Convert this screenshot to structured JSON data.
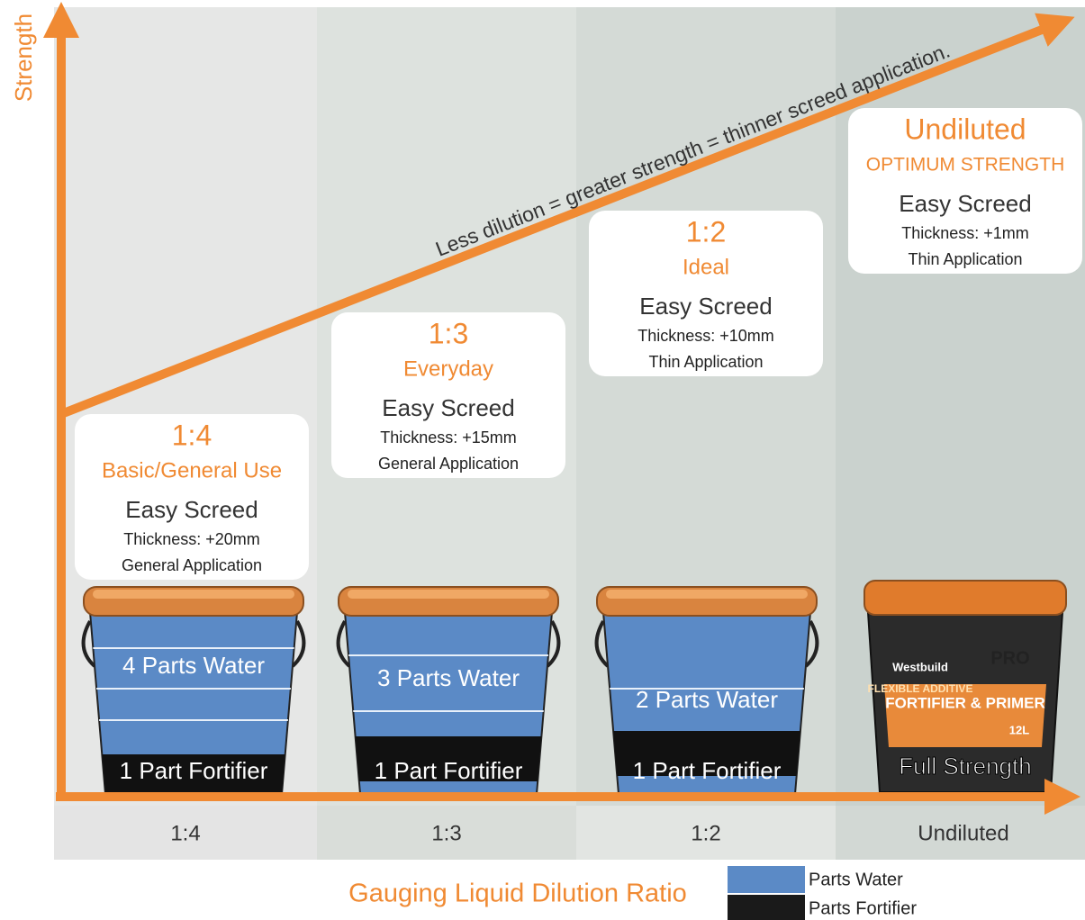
{
  "y_axis_label": "Strength",
  "trend_label": "Less dilution = greater strength = thinner screed application.",
  "columns": [
    {
      "ratio": "1:4",
      "name": "Basic/General Use",
      "product": "Easy Screed",
      "thickness": "Thickness: +20mm",
      "application": "General Application",
      "water": "4 Parts Water",
      "fortifier": "1 Part Fortifier",
      "x_label": "1:4"
    },
    {
      "ratio": "1:3",
      "name": "Everyday",
      "product": "Easy Screed",
      "thickness": "Thickness: +15mm",
      "application": "General Application",
      "water": "3 Parts Water",
      "fortifier": "1 Part Fortifier",
      "x_label": "1:3"
    },
    {
      "ratio": "1:2",
      "name": "Ideal",
      "product": "Easy Screed",
      "thickness": "Thickness: +10mm",
      "application": "Thin Application",
      "water": "2 Parts Water",
      "fortifier": "1 Part Fortifier",
      "x_label": "1:2"
    },
    {
      "ratio": "Undiluted",
      "name": "OPTIMUM STRENGTH",
      "product": "Easy Screed",
      "thickness": "Thickness: +1mm",
      "application": "Thin Application",
      "brand": "Westbuild",
      "badge": "PRO",
      "line1": "FLEXIBLE ADDITIVE",
      "line2": "FORTIFIER & PRIMER",
      "volume": "12L",
      "fortifier": "Full Strength",
      "x_label": "Undiluted"
    }
  ],
  "x_axis_label": "Gauging Liquid Dilution Ratio",
  "legend": [
    "Parts Water",
    "Parts Fortifier"
  ]
}
